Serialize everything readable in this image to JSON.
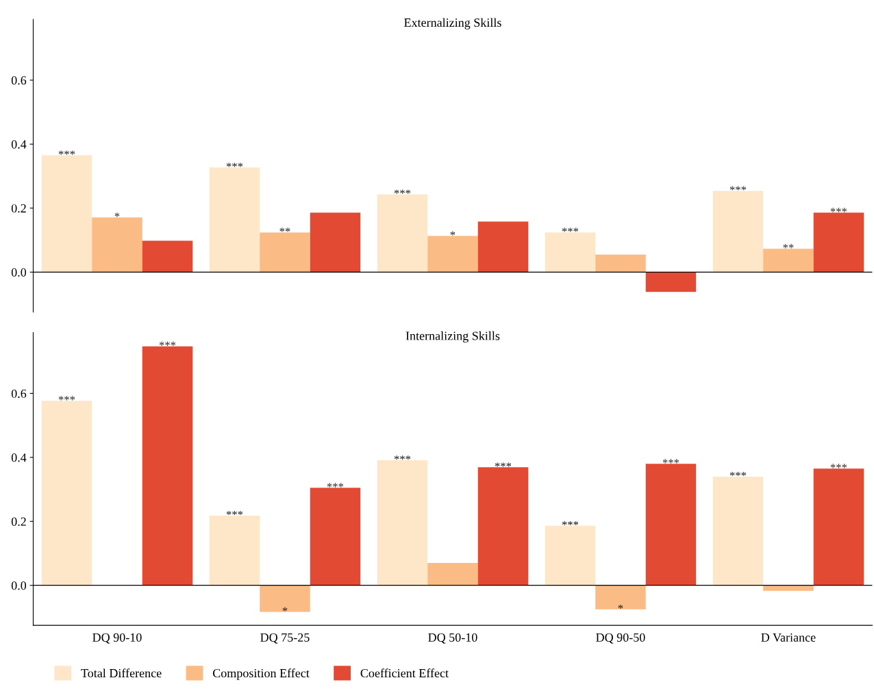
{
  "chart_data": [
    {
      "type": "bar",
      "title": "Externalizing Skills",
      "categories": [
        null,
        null,
        null,
        null,
        null
      ],
      "ylim": [
        -0.125,
        0.79
      ],
      "yticks": [
        {
          "value": 0,
          "label": "0.0"
        },
        0.2,
        0.4,
        0.6
      ],
      "tick_labels": "y",
      "grid": false,
      "ref_lines": [
        {
          "axis": "y",
          "value": 0,
          "color": "#000000"
        }
      ],
      "series": [
        {
          "color": "#fee6c8",
          "values": [
            0.365,
            0.327,
            0.243,
            0.124,
            0.254
          ],
          "value_labels": [
            "***",
            "***",
            "***",
            "***",
            "***"
          ]
        },
        {
          "color": "#fbbb84",
          "values": [
            0.171,
            0.124,
            0.113,
            0.055,
            0.073
          ],
          "value_labels": [
            "*",
            "**",
            "*",
            null,
            "**"
          ]
        },
        {
          "color": "#e34a33",
          "values": [
            0.098,
            0.186,
            0.158,
            -0.062,
            0.186
          ],
          "value_labels": [
            null,
            null,
            null,
            null,
            "***"
          ]
        }
      ]
    },
    {
      "type": "bar",
      "title": "Internalizing Skills",
      "categories": [
        "DQ 90-10",
        "DQ 75-25",
        "DQ 50-10",
        "DQ 90-50",
        "D Variance"
      ],
      "ylim": [
        -0.125,
        0.79
      ],
      "yticks": [
        {
          "value": 0,
          "label": "0.0"
        },
        0.2,
        0.4,
        0.6
      ],
      "grid": false,
      "legend": "bottom left",
      "ref_lines": [
        {
          "axis": "y",
          "value": 0,
          "color": "#000000"
        }
      ],
      "series": [
        {
          "name": "Total Difference",
          "color": "#fee6c8",
          "values": [
            0.577,
            0.218,
            0.391,
            0.186,
            0.34
          ],
          "value_labels": [
            "***",
            "***",
            "***",
            "***",
            "***"
          ]
        },
        {
          "name": "Composition Effect",
          "color": "#fbbb84",
          "values": [
            0.0,
            -0.083,
            0.07,
            -0.075,
            -0.017
          ],
          "value_labels": [
            null,
            "*",
            null,
            "*",
            null
          ]
        },
        {
          "name": "Coefficient Effect",
          "color": "#e34a33",
          "values": [
            0.747,
            0.305,
            0.369,
            0.38,
            0.365
          ],
          "value_labels": [
            "***",
            "***",
            "***",
            "***",
            "***"
          ]
        }
      ]
    }
  ]
}
